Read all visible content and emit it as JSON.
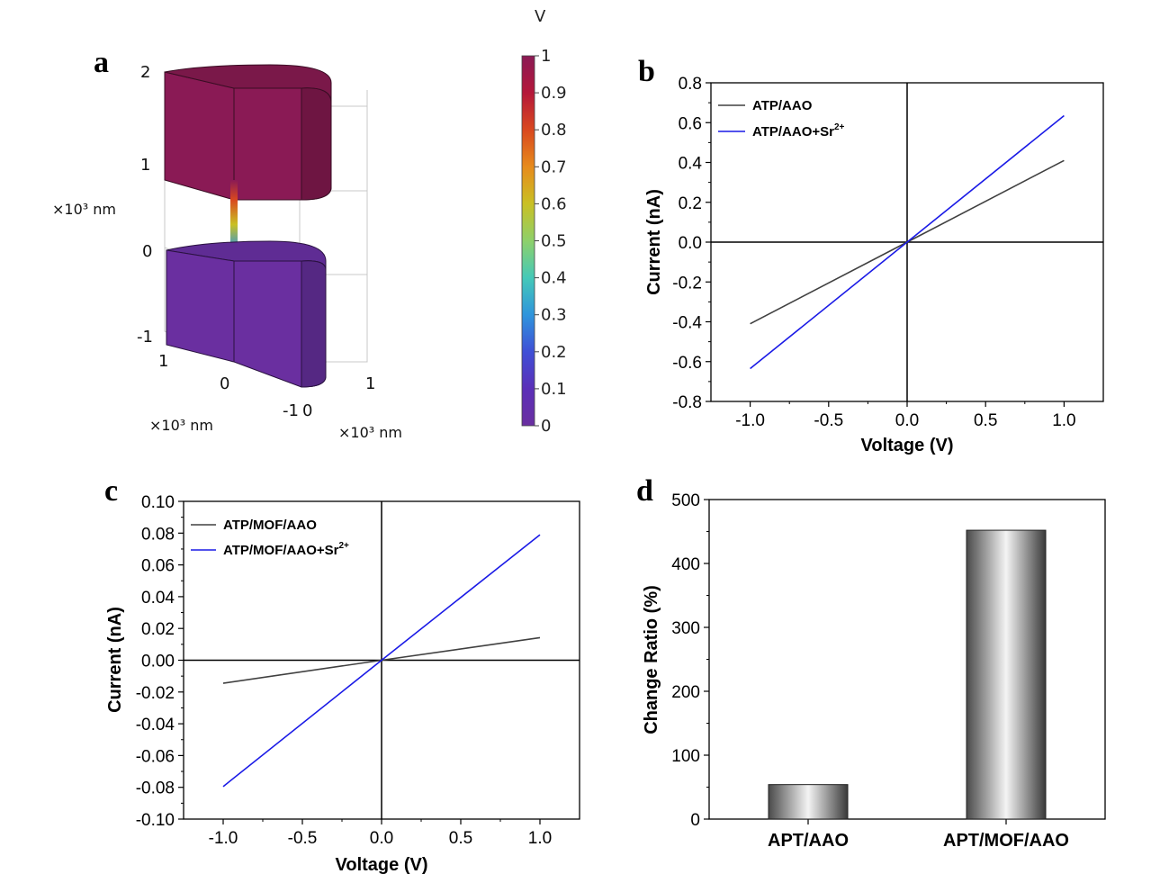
{
  "panel_labels": {
    "a": "a",
    "b": "b",
    "c": "c",
    "d": "d"
  },
  "panel_a": {
    "colorbar_unit": "V",
    "colorbar_ticks": [
      "1",
      "0.9",
      "0.8",
      "0.7",
      "0.6",
      "0.5",
      "0.4",
      "0.3",
      "0.2",
      "0.1",
      "0"
    ],
    "colorbar_colors": [
      "#8a1a55",
      "#b5173a",
      "#d9481f",
      "#e78b1c",
      "#c9c024",
      "#8ed06a",
      "#45c9b8",
      "#2f95dc",
      "#3f4fd6",
      "#5b2fb8",
      "#6a2fa0"
    ],
    "z_ticks": [
      "2",
      "1",
      "0",
      "-1"
    ],
    "x_ticks": [
      "1",
      "0",
      "-1"
    ],
    "y_ticks": [
      "0",
      "1"
    ],
    "z_unit": "×10³ nm",
    "x_unit": "×10³ nm",
    "y_unit": "×10³ nm",
    "upper_color": "#8a1a55",
    "lower_color": "#6a2fa0"
  },
  "chart_data": [
    {
      "panel": "b",
      "type": "line",
      "xlabel": "Voltage (V)",
      "ylabel": "Current (nA)",
      "xlim": [
        -1.25,
        1.25
      ],
      "ylim": [
        -0.8,
        0.8
      ],
      "xticks": [
        -1.0,
        -0.5,
        0.0,
        0.5,
        1.0
      ],
      "yticks": [
        0.8,
        0.6,
        0.4,
        0.2,
        0.0,
        -0.2,
        -0.4,
        -0.6,
        -0.8
      ],
      "xtick_decimals": 1,
      "ytick_decimals": 1,
      "series": [
        {
          "name": "ATP/AAO",
          "color": "#404040",
          "x": [
            -1.0,
            0.0,
            1.0
          ],
          "y": [
            -0.41,
            0.0,
            0.41
          ]
        },
        {
          "name": "ATP/AAO+Sr",
          "sup": "2+",
          "color": "#1a1ae6",
          "x": [
            -1.0,
            0.0,
            1.0
          ],
          "y": [
            -0.635,
            0.0,
            0.635
          ]
        }
      ]
    },
    {
      "panel": "c",
      "type": "line",
      "xlabel": "Voltage (V)",
      "ylabel": "Current (nA)",
      "xlim": [
        -1.25,
        1.25
      ],
      "ylim": [
        -0.1,
        0.1
      ],
      "xticks": [
        -1.0,
        -0.5,
        0.0,
        0.5,
        1.0
      ],
      "yticks": [
        0.1,
        0.08,
        0.06,
        0.04,
        0.02,
        0.0,
        -0.02,
        -0.04,
        -0.06,
        -0.08,
        -0.1
      ],
      "xtick_decimals": 1,
      "ytick_decimals": 2,
      "series": [
        {
          "name": "ATP/MOF/AAO",
          "color": "#404040",
          "x": [
            -1.0,
            0.0,
            1.0
          ],
          "y": [
            -0.0145,
            0.0,
            0.0142
          ]
        },
        {
          "name": "ATP/MOF/AAO+Sr",
          "sup": "2+",
          "color": "#1a1ae6",
          "x": [
            -1.0,
            0.0,
            1.0
          ],
          "y": [
            -0.0795,
            0.0,
            0.079
          ]
        }
      ]
    },
    {
      "panel": "d",
      "type": "bar",
      "ylabel": "Change Ratio (%)",
      "ylim": [
        0,
        500
      ],
      "yticks": [
        0,
        100,
        200,
        300,
        400,
        500
      ],
      "categories": [
        "APT/AAO",
        "APT/MOF/AAO"
      ],
      "values": [
        54,
        452
      ]
    }
  ]
}
